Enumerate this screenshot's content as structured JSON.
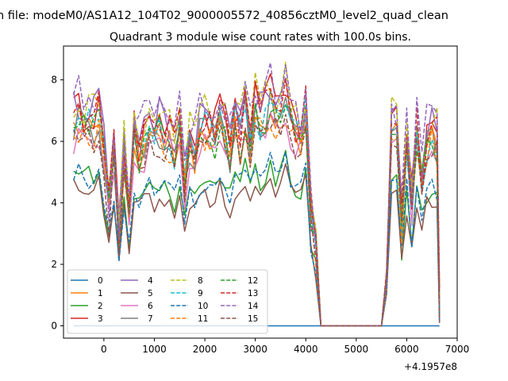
{
  "chart_data": {
    "type": "line",
    "suptitle": "n file: modeM0/AS1A12_104T02_9000005572_40856cztM0_level2_quad_clean",
    "title": "Quadrant 3 module wise count rates with 100.0s bins.",
    "xlabel": "",
    "ylabel": "",
    "x_offset_label": "+4.1957e8",
    "xlim": [
      -800,
      7000
    ],
    "ylim": [
      -0.4,
      9.1
    ],
    "xticks": [
      0,
      1000,
      2000,
      3000,
      4000,
      5000,
      6000,
      7000
    ],
    "yticks": [
      0,
      2,
      4,
      6,
      8
    ],
    "grid": false,
    "legend_position": "lower-left",
    "series": [
      {
        "name": "0",
        "color": "#1f77b4",
        "style": "solid"
      },
      {
        "name": "1",
        "color": "#ff7f0e",
        "style": "solid"
      },
      {
        "name": "2",
        "color": "#2ca02c",
        "style": "solid"
      },
      {
        "name": "3",
        "color": "#d62728",
        "style": "solid"
      },
      {
        "name": "4",
        "color": "#9467bd",
        "style": "solid"
      },
      {
        "name": "5",
        "color": "#8c564b",
        "style": "solid"
      },
      {
        "name": "6",
        "color": "#e377c2",
        "style": "solid"
      },
      {
        "name": "7",
        "color": "#7f7f7f",
        "style": "solid"
      },
      {
        "name": "8",
        "color": "#bcbd22",
        "style": "dashed"
      },
      {
        "name": "9",
        "color": "#17becf",
        "style": "dashed"
      },
      {
        "name": "10",
        "color": "#1f77b4",
        "style": "dashed"
      },
      {
        "name": "11",
        "color": "#ff7f0e",
        "style": "dashed"
      },
      {
        "name": "12",
        "color": "#2ca02c",
        "style": "dashed"
      },
      {
        "name": "13",
        "color": "#d62728",
        "style": "dashed"
      },
      {
        "name": "14",
        "color": "#9467bd",
        "style": "dashed"
      },
      {
        "name": "15",
        "color": "#8c564b",
        "style": "dashed"
      }
    ],
    "segment_starts": [
      -600,
      5550
    ],
    "segment_ends": [
      4250,
      6650
    ],
    "bin_width": 100,
    "anchor_x": [
      -600,
      -500,
      -400,
      -300,
      -200,
      -100,
      0,
      100,
      200,
      300,
      400,
      500,
      600,
      700,
      800,
      900,
      1000,
      1100,
      1200,
      1300,
      1400,
      1500,
      1600,
      1700,
      1800,
      1900,
      2000,
      2100,
      2200,
      2300,
      2400,
      2500,
      2600,
      2700,
      2800,
      2900,
      3000,
      3100,
      3200,
      3300,
      3400,
      3500,
      3600,
      3700,
      3800,
      3900,
      4000,
      4100,
      4200,
      4300,
      4400,
      4500,
      4600,
      4700,
      4800,
      4900,
      5000,
      5100,
      5200,
      5300,
      5400,
      5500,
      5600,
      5700,
      5800,
      5900,
      6000,
      6100,
      6200,
      6300,
      6400,
      6500,
      6600,
      6650
    ],
    "anchor_level": [
      1.0,
      1.02,
      0.97,
      1.0,
      0.99,
      1.03,
      0.85,
      0.55,
      0.85,
      0.45,
      0.85,
      0.5,
      0.95,
      0.85,
      0.9,
      0.95,
      0.93,
      0.96,
      0.9,
      0.93,
      0.85,
      0.95,
      0.7,
      0.9,
      0.85,
      0.95,
      0.98,
      0.96,
      0.92,
      1.0,
      0.95,
      0.85,
      1.02,
      0.92,
      1.05,
      0.9,
      1.08,
      1.0,
      1.05,
      1.1,
      1.02,
      1.05,
      1.12,
      1.0,
      0.95,
      0.92,
      1.05,
      0.55,
      0.4,
      0.0,
      0.0,
      0.0,
      0.0,
      0.0,
      0.0,
      0.0,
      0.0,
      0.0,
      0.0,
      0.0,
      0.0,
      0.0,
      0.2,
      1.0,
      0.95,
      0.5,
      0.9,
      0.6,
      0.95,
      0.7,
      0.9,
      0.95,
      0.9,
      0.08
    ],
    "module_base_rates": [
      0.0,
      6.4,
      4.8,
      7.0,
      7.1,
      4.4,
      6.1,
      6.5,
      7.2,
      6.6,
      4.9,
      6.3,
      6.5,
      6.9,
      7.4,
      6.2
    ],
    "count_range": "counts per 100.0 s bin between 0 and about 8.6"
  },
  "legend_labels": [
    "0",
    "1",
    "2",
    "3",
    "4",
    "5",
    "6",
    "7",
    "8",
    "9",
    "10",
    "11",
    "12",
    "13",
    "14",
    "15"
  ]
}
